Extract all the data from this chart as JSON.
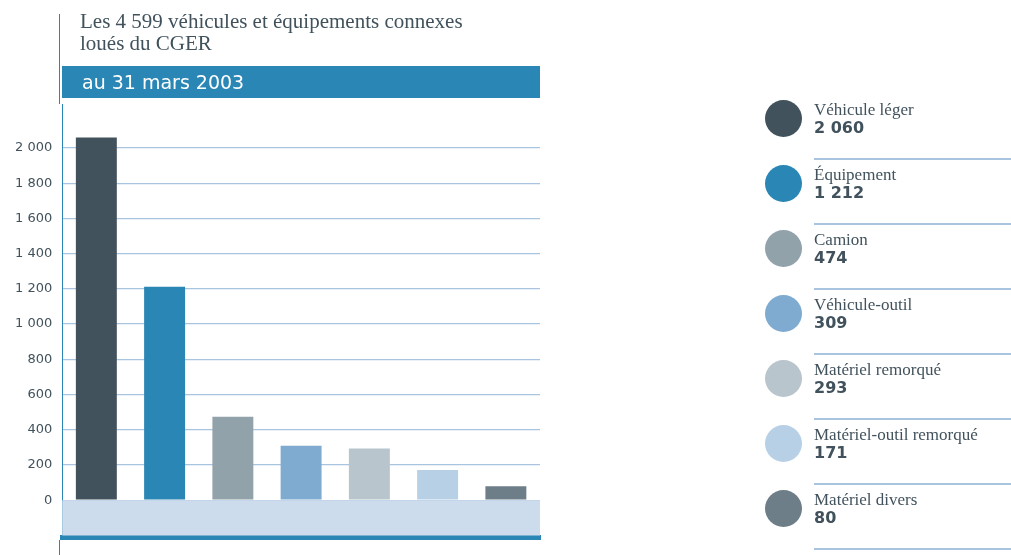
{
  "chart_data": {
    "type": "bar",
    "title": "Les 4 599 véhicules et équipements connexes loués du CGER",
    "subtitle": "au 31 mars 2003",
    "categories": [
      null,
      null,
      null,
      null,
      null,
      null,
      null
    ],
    "series": [
      {
        "name": "Véhicule léger",
        "color": "#41525c",
        "values": [
          2060,
          null,
          null,
          null,
          null,
          null,
          null
        ]
      },
      {
        "name": "Équipement",
        "color": "#2a86b4",
        "values": [
          null,
          1212,
          null,
          null,
          null,
          null,
          null
        ]
      },
      {
        "name": "Camion",
        "color": "#92a2aa",
        "values": [
          null,
          null,
          474,
          null,
          null,
          null,
          null
        ]
      },
      {
        "name": "Véhicule-outil",
        "color": "#7eabcf",
        "values": [
          null,
          null,
          null,
          309,
          null,
          null,
          null
        ]
      },
      {
        "name": "Matériel remorqué",
        "color": "#b8c5cc",
        "values": [
          null,
          null,
          null,
          null,
          293,
          null,
          null
        ]
      },
      {
        "name": "Matériel-outil remorqué",
        "color": "#b8d0e6",
        "values": [
          null,
          null,
          null,
          null,
          null,
          171,
          null
        ]
      },
      {
        "name": "Matériel divers",
        "color": "#6e7e88",
        "values": [
          null,
          null,
          null,
          null,
          null,
          null,
          80
        ]
      }
    ],
    "annotations": [
      "2 060",
      "1 212",
      "474",
      "309",
      "293",
      "171",
      "80"
    ],
    "ylim": [
      -210,
      2250
    ],
    "yticks": [
      {
        "value": 0,
        "label": "0"
      },
      {
        "value": 200,
        "label": "200"
      },
      {
        "value": 400,
        "label": "400"
      },
      {
        "value": 600,
        "label": "600"
      },
      {
        "value": 800,
        "label": "800"
      },
      {
        "value": 1000,
        "label": "1 000"
      },
      {
        "value": 1200,
        "label": "1 200"
      },
      {
        "value": 1400,
        "label": "1 400"
      },
      {
        "value": 1600,
        "label": "1 600"
      },
      {
        "value": 1800,
        "label": "1 800"
      },
      {
        "value": 2000,
        "label": "2 000"
      }
    ],
    "bands": [
      {
        "axis": "y",
        "from": -200,
        "to": 0,
        "color": "#cddcec"
      }
    ],
    "grid": "y",
    "legend": "right",
    "tick_labels": "y"
  }
}
